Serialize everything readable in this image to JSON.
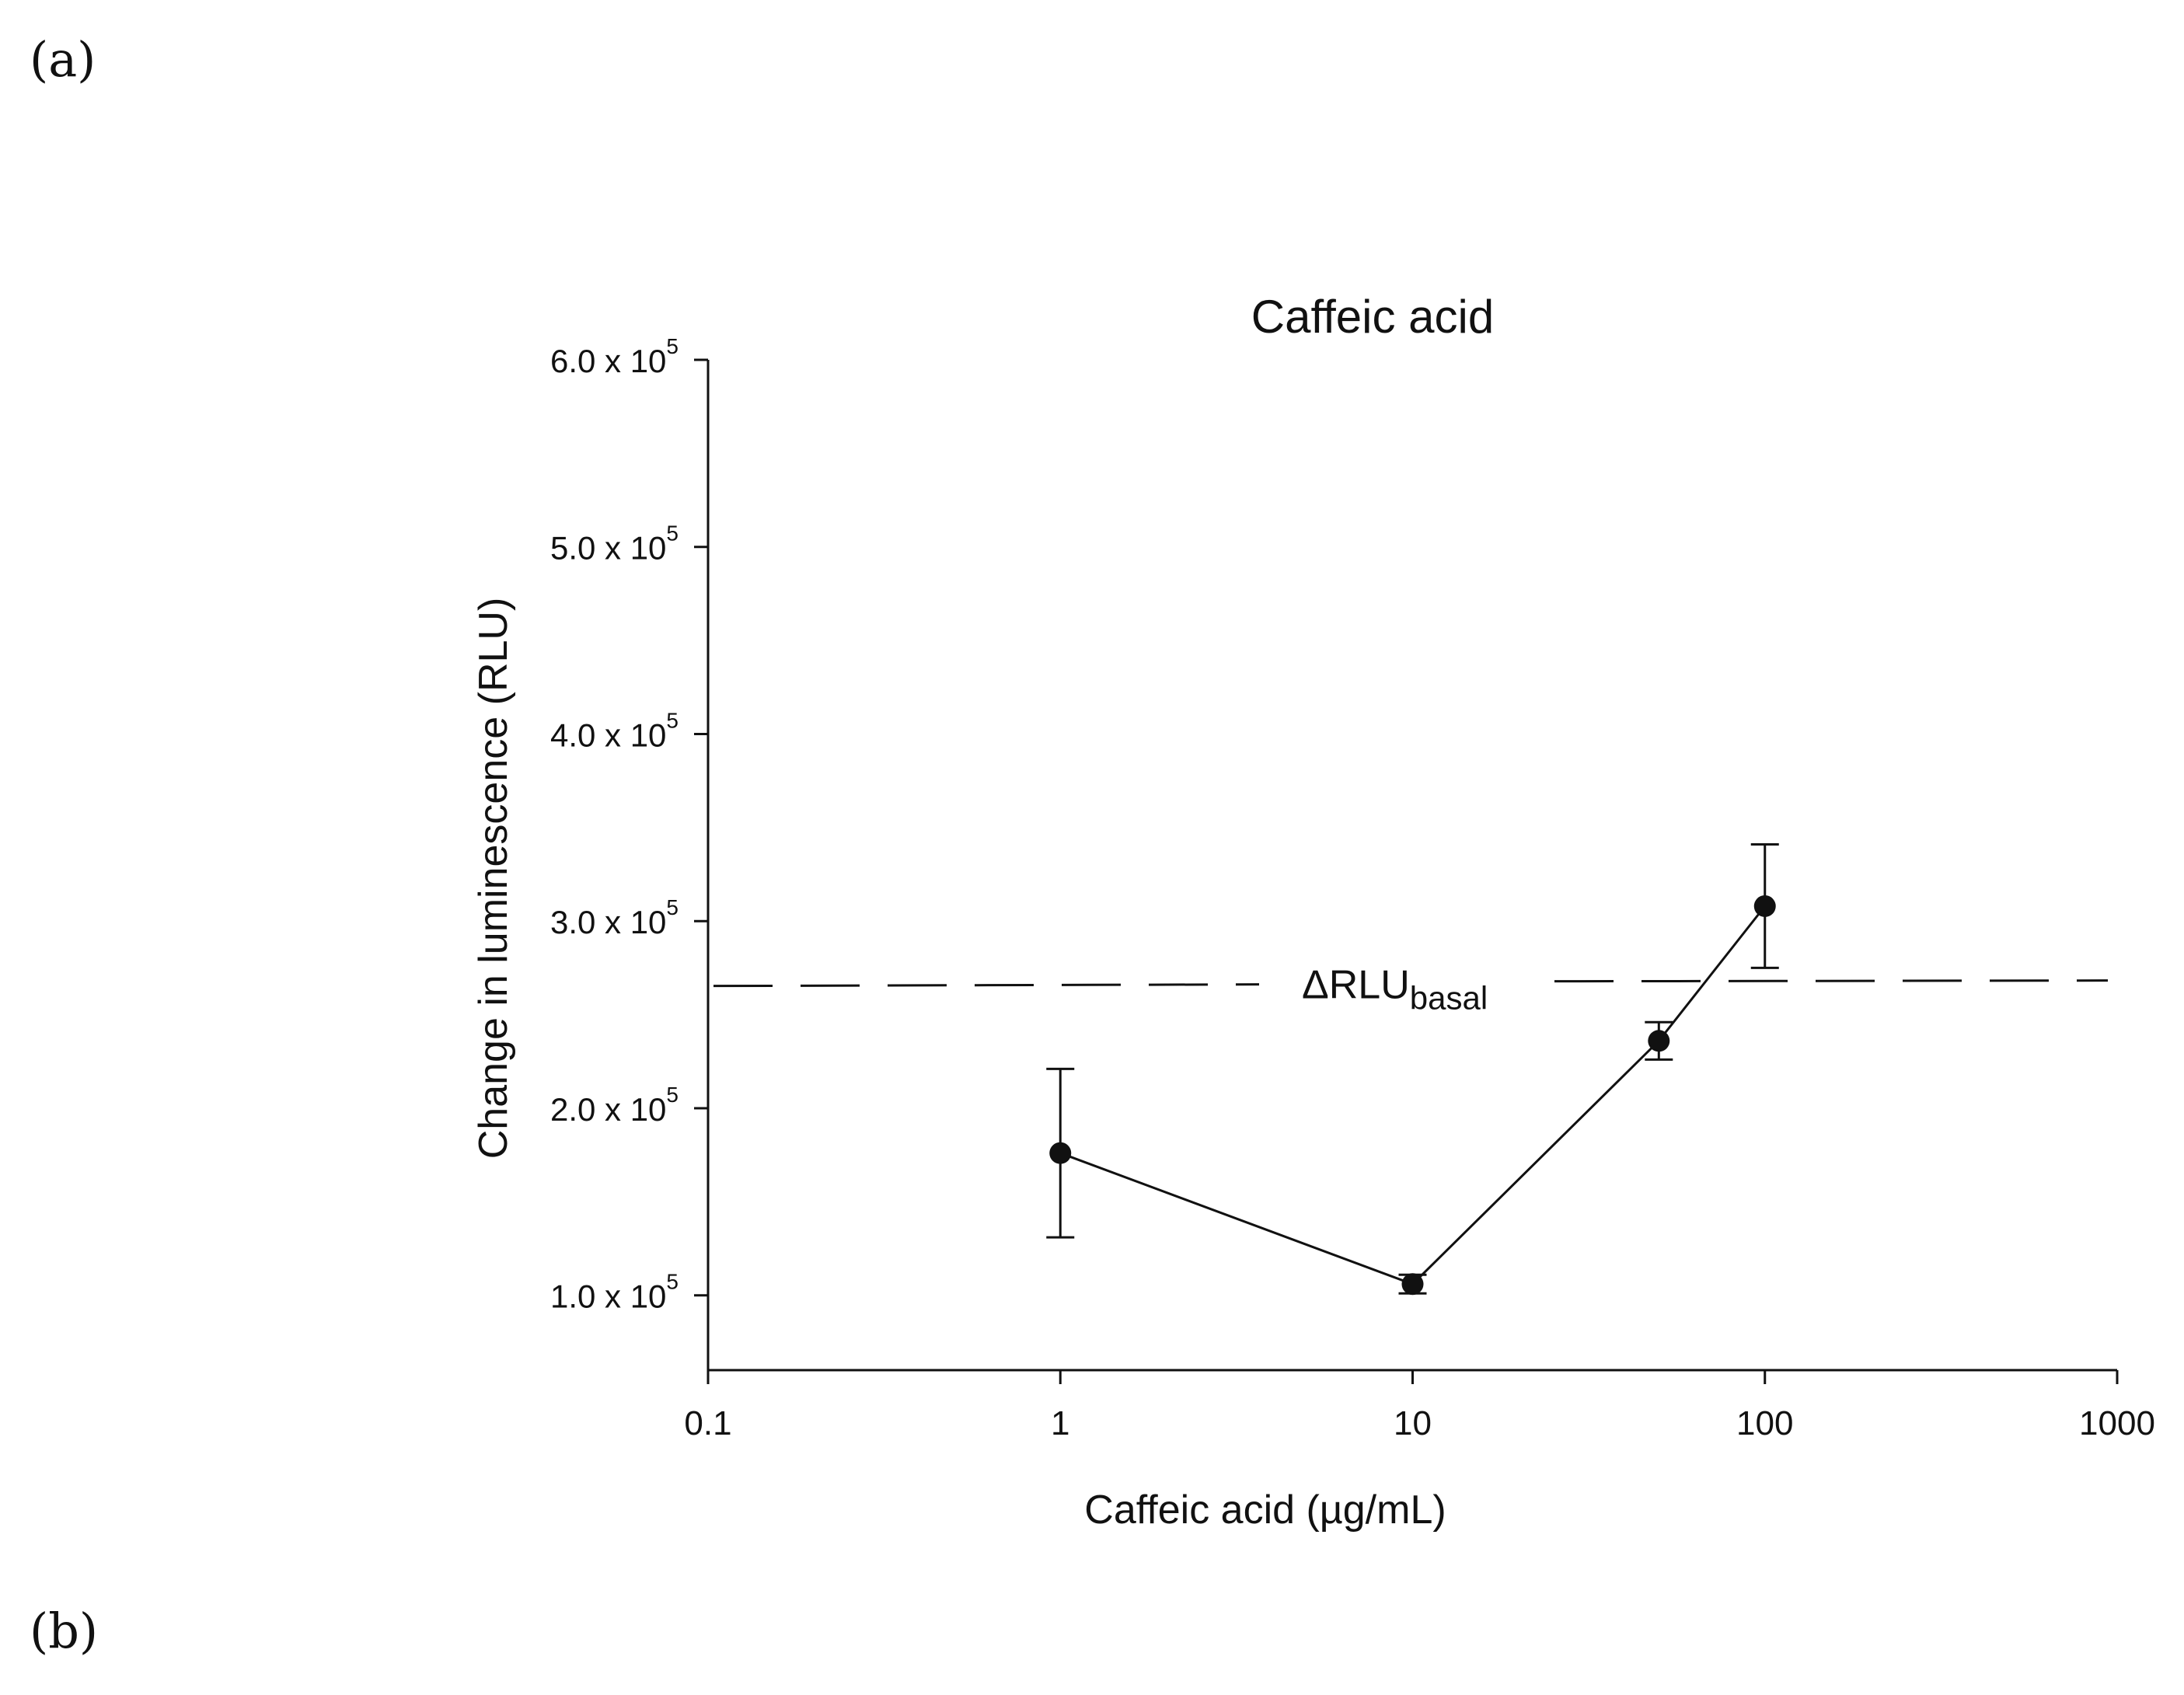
{
  "panels": {
    "a": "(a)",
    "b": "(b)"
  },
  "chart_data": {
    "type": "line",
    "title": "Caffeic acid",
    "xlabel": "Caffeic acid (µg/mL)",
    "ylabel": "Change in luminescence (RLU)",
    "xscale": "log",
    "xlim": [
      0.1,
      1000
    ],
    "ylim": [
      60000,
      600000
    ],
    "x_ticks": [
      {
        "value": 0.1,
        "label": "0.1"
      },
      {
        "value": 1,
        "label": "1"
      },
      {
        "value": 10,
        "label": "10"
      },
      {
        "value": 100,
        "label": "100"
      },
      {
        "value": 1000,
        "label": "1000"
      }
    ],
    "y_ticks": [
      {
        "value": 100000,
        "mantissa": "1.0 x 10",
        "exp": "5"
      },
      {
        "value": 200000,
        "mantissa": "2.0 x 10",
        "exp": "5"
      },
      {
        "value": 300000,
        "mantissa": "3.0 x 10",
        "exp": "5"
      },
      {
        "value": 400000,
        "mantissa": "4.0 x 10",
        "exp": "5"
      },
      {
        "value": 500000,
        "mantissa": "5.0 x 10",
        "exp": "5"
      },
      {
        "value": 600000,
        "mantissa": "6.0 x 10",
        "exp": "5"
      }
    ],
    "series": [
      {
        "x": [
          1,
          10,
          50,
          100
        ],
        "y": [
          176000,
          106000,
          236000,
          308000
        ],
        "err": [
          45000,
          5000,
          10000,
          33000
        ]
      }
    ],
    "reference_line": {
      "y": 267000,
      "label": "ΔRLU",
      "label_sub": "basal",
      "style": "dashed"
    },
    "grid": false,
    "marker_color": "#111111"
  }
}
